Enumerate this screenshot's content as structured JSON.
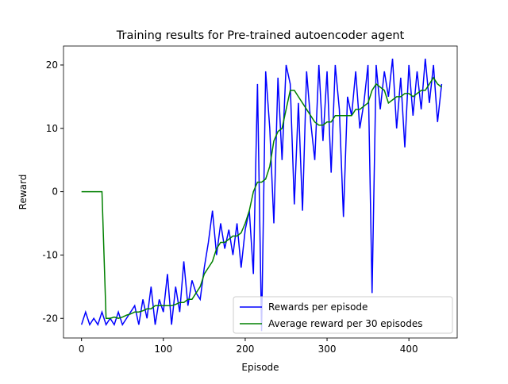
{
  "chart_data": {
    "type": "line",
    "title": "Training results for Pre-trained autoencoder agent",
    "x_label": "Episode",
    "y_label": "Reward",
    "x": [
      0,
      5,
      10,
      15,
      20,
      25,
      30,
      35,
      40,
      45,
      50,
      55,
      60,
      65,
      70,
      75,
      80,
      85,
      90,
      95,
      100,
      105,
      110,
      115,
      120,
      125,
      130,
      135,
      140,
      145,
      150,
      155,
      160,
      165,
      170,
      175,
      180,
      185,
      190,
      195,
      200,
      205,
      210,
      215,
      220,
      225,
      230,
      235,
      240,
      245,
      250,
      255,
      260,
      265,
      270,
      275,
      280,
      285,
      290,
      295,
      300,
      305,
      310,
      315,
      320,
      325,
      330,
      335,
      340,
      345,
      350,
      355,
      360,
      365,
      370,
      375,
      380,
      385,
      390,
      395,
      400,
      405,
      410,
      415,
      420,
      425,
      430,
      435,
      440
    ],
    "series": [
      {
        "name": "Rewards per episode",
        "color": "#0000ff",
        "values": [
          -21,
          -19,
          -21,
          -20,
          -21,
          -19,
          -21,
          -20,
          -21,
          -19,
          -21,
          -20,
          -19,
          -18,
          -21,
          -17,
          -20,
          -15,
          -21,
          -17,
          -19,
          -13,
          -21,
          -15,
          -19,
          -11,
          -18,
          -14,
          -16,
          -17,
          -12,
          -8,
          -3,
          -10,
          -5,
          -9,
          -6,
          -10,
          -5,
          -12,
          -6,
          -3,
          -13,
          17,
          -22,
          19,
          10,
          -5,
          18,
          5,
          20,
          17,
          -2,
          14,
          -3,
          19,
          11,
          5,
          20,
          8,
          19,
          3,
          20,
          13,
          -4,
          15,
          12,
          19,
          10,
          14,
          20,
          -16,
          20,
          13,
          19,
          15,
          21,
          10,
          18,
          7,
          20,
          12,
          19,
          13,
          21,
          14,
          20,
          11,
          17
        ]
      },
      {
        "name": "Average reward per 30 episodes",
        "color": "#008000",
        "values": [
          0,
          0,
          0,
          0,
          0,
          0,
          -20,
          -20,
          -19.8,
          -20,
          -19.8,
          -19.5,
          -19.3,
          -19,
          -19,
          -18.8,
          -18.5,
          -18.5,
          -18,
          -18,
          -18,
          -18,
          -18,
          -17.8,
          -17.5,
          -17.5,
          -17,
          -17,
          -16,
          -15,
          -13,
          -12,
          -11,
          -9,
          -8,
          -8,
          -7.5,
          -7,
          -7,
          -6.5,
          -5,
          -3,
          0,
          1.5,
          1.5,
          2,
          4,
          8,
          9.5,
          10,
          13,
          16,
          16,
          15,
          14,
          13,
          12,
          11,
          10.5,
          10.5,
          11,
          11,
          12,
          12,
          12,
          12,
          12,
          13,
          13,
          13.5,
          14,
          16,
          17,
          16.5,
          16,
          14,
          14.5,
          15,
          15,
          15.5,
          15.5,
          15,
          15.5,
          16,
          16,
          17,
          18,
          17,
          16.5
        ]
      }
    ],
    "xlim": [
      -22,
      459
    ],
    "ylim": [
      -23.1,
      23.0
    ],
    "xticks": [
      0,
      100,
      200,
      300,
      400
    ],
    "yticks": [
      -20,
      -10,
      0,
      10,
      20
    ],
    "grid": false,
    "legend_position": "lower-right"
  }
}
